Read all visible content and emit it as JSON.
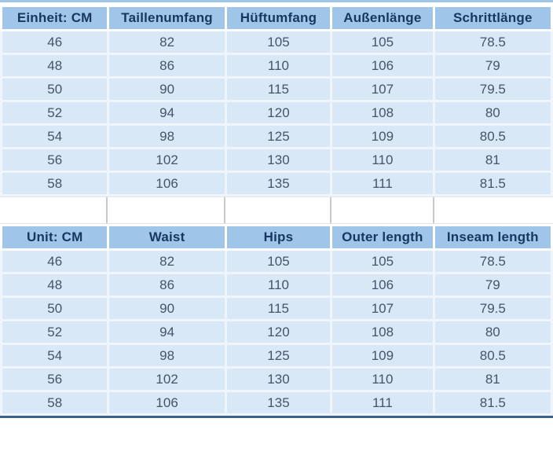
{
  "colors": {
    "header_bg": "#9fc5e8",
    "header_text": "#17375e",
    "row_bg": "#d9e8f6",
    "row_text": "#44546a",
    "grid_line": "#eff5fb",
    "spacer_divider": "#c6cacd",
    "top_rule": "#9fc5e8",
    "bottom_rule": "#3d618d"
  },
  "tables": [
    {
      "id": "size-chart-german",
      "headers": [
        "Einheit: CM",
        "Taillenumfang",
        "Hüftumfang",
        "Außenlänge",
        "Schrittlänge"
      ],
      "rows": [
        [
          "46",
          "82",
          "105",
          "105",
          "78.5"
        ],
        [
          "48",
          "86",
          "110",
          "106",
          "79"
        ],
        [
          "50",
          "90",
          "115",
          "107",
          "79.5"
        ],
        [
          "52",
          "94",
          "120",
          "108",
          "80"
        ],
        [
          "54",
          "98",
          "125",
          "109",
          "80.5"
        ],
        [
          "56",
          "102",
          "130",
          "110",
          "81"
        ],
        [
          "58",
          "106",
          "135",
          "111",
          "81.5"
        ]
      ]
    },
    {
      "id": "size-chart-english",
      "headers": [
        "Unit: CM",
        "Waist",
        "Hips",
        "Outer length",
        "Inseam length"
      ],
      "rows": [
        [
          "46",
          "82",
          "105",
          "105",
          "78.5"
        ],
        [
          "48",
          "86",
          "110",
          "106",
          "79"
        ],
        [
          "50",
          "90",
          "115",
          "107",
          "79.5"
        ],
        [
          "52",
          "94",
          "120",
          "108",
          "80"
        ],
        [
          "54",
          "98",
          "125",
          "109",
          "80.5"
        ],
        [
          "56",
          "102",
          "130",
          "110",
          "81"
        ],
        [
          "58",
          "106",
          "135",
          "111",
          "81.5"
        ]
      ]
    }
  ]
}
